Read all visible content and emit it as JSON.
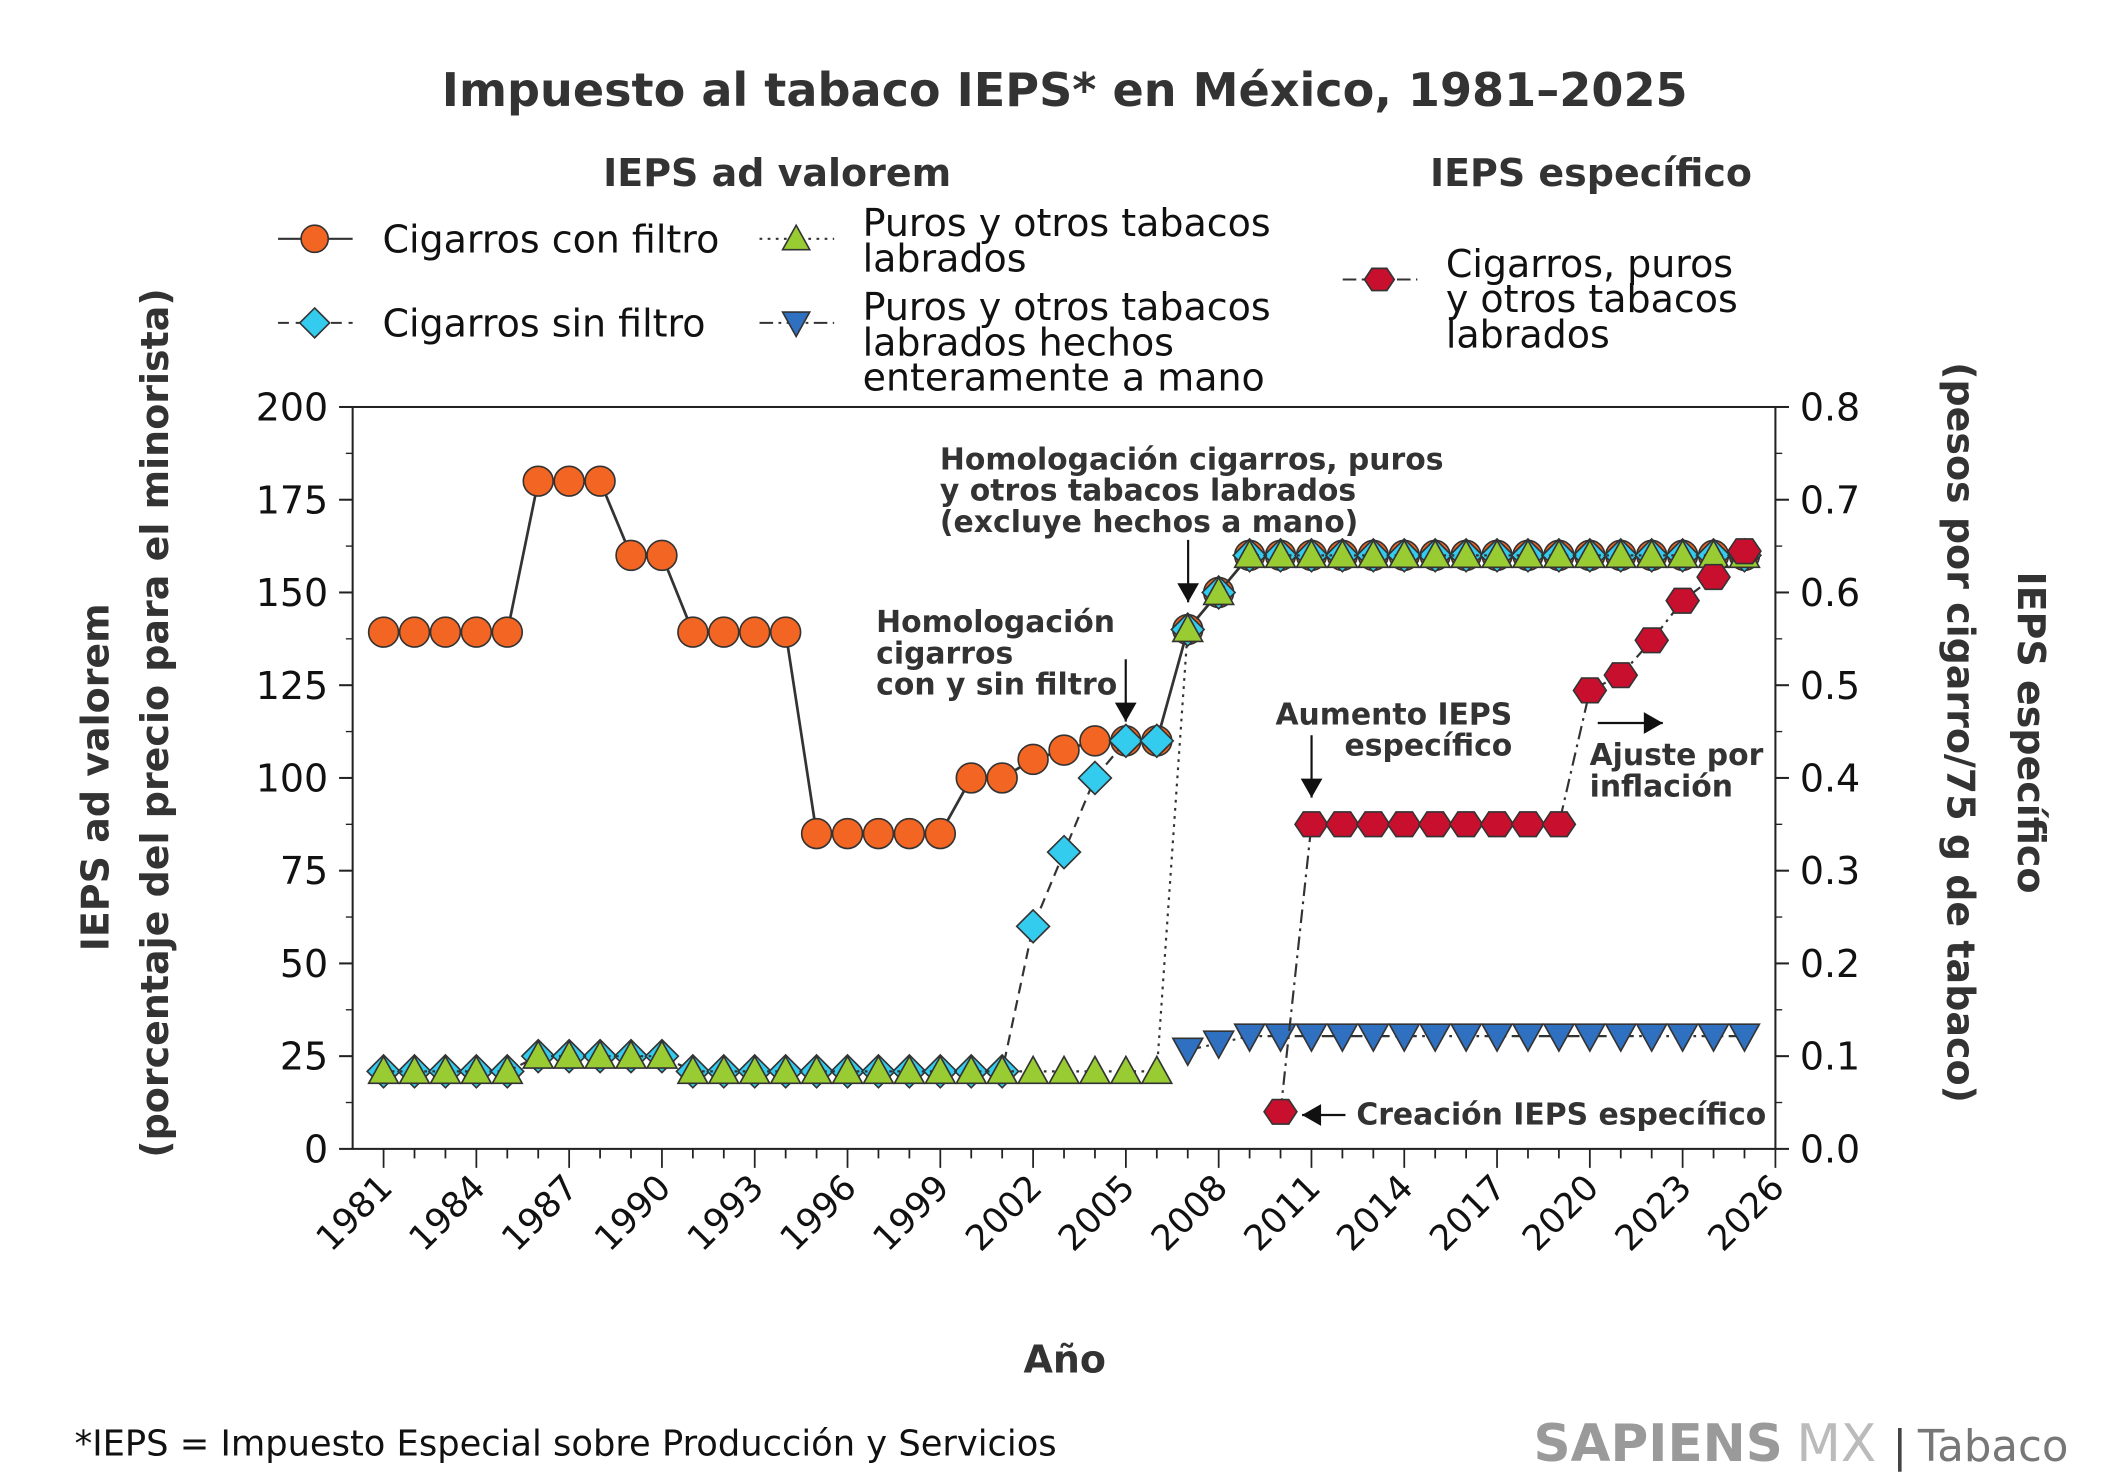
{
  "chart_data": {
    "type": "line",
    "title": "Impuesto al tabaco IEPS* en México, 1981–2025",
    "xlabel": "Año",
    "ylabel_left": [
      "IEPS ad valorem",
      "(porcentaje del precio para el minorista)"
    ],
    "ylabel_right": [
      "IEPS específico",
      "(pesos por cigarro/75 g de tabaco)"
    ],
    "xlim": [
      1980,
      2026
    ],
    "ylim_left": [
      0,
      200
    ],
    "ylim_right": [
      0,
      0.8
    ],
    "x_ticks": [
      "1981",
      "1984",
      "1987",
      "1990",
      "1993",
      "1996",
      "1999",
      "2002",
      "2005",
      "2008",
      "2011",
      "2014",
      "2017",
      "2020",
      "2023",
      "2026"
    ],
    "y_ticks_left": [
      "0",
      "25",
      "50",
      "75",
      "100",
      "125",
      "150",
      "175",
      "200"
    ],
    "y_ticks_right": [
      "0.0",
      "0.1",
      "0.2",
      "0.3",
      "0.4",
      "0.5",
      "0.6",
      "0.7",
      "0.8"
    ],
    "grid": false,
    "legend_groups": {
      "ad_valorem": "IEPS ad valorem",
      "especifico": "IEPS específico"
    },
    "series": [
      {
        "name": "Cigarros con filtro",
        "axis": "left",
        "marker": "circle",
        "line": "solid",
        "color": "#F26522",
        "x": [
          1981,
          1982,
          1983,
          1984,
          1985,
          1986,
          1987,
          1988,
          1989,
          1990,
          1991,
          1992,
          1993,
          1994,
          1995,
          1996,
          1997,
          1998,
          1999,
          2000,
          2001,
          2002,
          2003,
          2004,
          2005,
          2006,
          2007,
          2008,
          2009,
          2010,
          2011,
          2012,
          2013,
          2014,
          2015,
          2016,
          2017,
          2018,
          2019,
          2020,
          2021,
          2022,
          2023,
          2024,
          2025
        ],
        "y": [
          139.3,
          139.3,
          139.3,
          139.3,
          139.3,
          180,
          180,
          180,
          160,
          160,
          139.3,
          139.3,
          139.3,
          139.3,
          85,
          85,
          85,
          85,
          85,
          100,
          100,
          105,
          107.5,
          110,
          110,
          110,
          140,
          150,
          160,
          160,
          160,
          160,
          160,
          160,
          160,
          160,
          160,
          160,
          160,
          160,
          160,
          160,
          160,
          160,
          160
        ]
      },
      {
        "name": "Cigarros sin filtro",
        "axis": "left",
        "marker": "diamond",
        "line": "dashed",
        "color": "#33CCEE",
        "x": [
          1981,
          1982,
          1983,
          1984,
          1985,
          1986,
          1987,
          1988,
          1989,
          1990,
          1991,
          1992,
          1993,
          1994,
          1995,
          1996,
          1997,
          1998,
          1999,
          2000,
          2001,
          2002,
          2003,
          2004,
          2005,
          2006,
          2007,
          2008,
          2009,
          2010,
          2011,
          2012,
          2013,
          2014,
          2015,
          2016,
          2017,
          2018,
          2019,
          2020,
          2021,
          2022,
          2023,
          2024,
          2025
        ],
        "y": [
          20.9,
          20.9,
          20.9,
          20.9,
          20.9,
          25,
          25,
          25,
          25,
          25,
          20.9,
          20.9,
          20.9,
          20.9,
          20.9,
          20.9,
          20.9,
          20.9,
          20.9,
          20.9,
          20.9,
          60,
          80,
          100,
          110,
          110,
          140,
          150,
          160,
          160,
          160,
          160,
          160,
          160,
          160,
          160,
          160,
          160,
          160,
          160,
          160,
          160,
          160,
          160,
          160
        ]
      },
      {
        "name": "Puros y otros tabacos labrados",
        "axis": "left",
        "marker": "triangle-up",
        "line": "dotted",
        "color": "#99CC33",
        "x": [
          1981,
          1982,
          1983,
          1984,
          1985,
          1986,
          1987,
          1988,
          1989,
          1990,
          1991,
          1992,
          1993,
          1994,
          1995,
          1996,
          1997,
          1998,
          1999,
          2000,
          2001,
          2002,
          2003,
          2004,
          2005,
          2006,
          2007,
          2008,
          2009,
          2010,
          2011,
          2012,
          2013,
          2014,
          2015,
          2016,
          2017,
          2018,
          2019,
          2020,
          2021,
          2022,
          2023,
          2024,
          2025
        ],
        "y": [
          20.9,
          20.9,
          20.9,
          20.9,
          20.9,
          25,
          25,
          25,
          25,
          25,
          20.9,
          20.9,
          20.9,
          20.9,
          20.9,
          20.9,
          20.9,
          20.9,
          20.9,
          20.9,
          20.9,
          20.9,
          20.9,
          20.9,
          20.9,
          20.9,
          140,
          150,
          160,
          160,
          160,
          160,
          160,
          160,
          160,
          160,
          160,
          160,
          160,
          160,
          160,
          160,
          160,
          160,
          160
        ]
      },
      {
        "name": "Puros y otros tabacos labrados hechos enteramente a mano",
        "axis": "left",
        "marker": "triangle-down",
        "line": "dashdot",
        "color": "#3070C0",
        "x": [
          2007,
          2008,
          2009,
          2010,
          2011,
          2012,
          2013,
          2014,
          2015,
          2016,
          2017,
          2018,
          2019,
          2020,
          2021,
          2022,
          2023,
          2024,
          2025
        ],
        "y": [
          26.6,
          28.5,
          30.4,
          30.4,
          30.4,
          30.4,
          30.4,
          30.4,
          30.4,
          30.4,
          30.4,
          30.4,
          30.4,
          30.4,
          30.4,
          30.4,
          30.4,
          30.4,
          30.4
        ]
      },
      {
        "name": "Cigarros, puros y otros tabacos labrados",
        "axis": "right",
        "marker": "hexagon",
        "line": "dashdot",
        "color": "#C8102E",
        "x": [
          2010,
          2011,
          2012,
          2013,
          2014,
          2015,
          2016,
          2017,
          2018,
          2019,
          2020,
          2021,
          2022,
          2023,
          2024,
          2025
        ],
        "y": [
          0.04,
          0.35,
          0.35,
          0.35,
          0.35,
          0.35,
          0.35,
          0.35,
          0.35,
          0.35,
          0.4944,
          0.5108,
          0.5484,
          0.5911,
          0.6166,
          0.6445
        ]
      }
    ],
    "legend_labels": {
      "s0": [
        "Cigarros con filtro"
      ],
      "s1": [
        "Cigarros sin filtro"
      ],
      "s2": [
        "Puros y otros tabacos",
        "labrados"
      ],
      "s3": [
        "Puros y otros tabacos",
        "labrados hechos",
        "enteramente a mano"
      ],
      "s4": [
        "Cigarros, puros",
        "y otros tabacos",
        "labrados"
      ]
    },
    "annotations": [
      {
        "lines": [
          "Homologación cigarros, puros",
          "y otros tabacos labrados",
          "(excluye hechos a mano)"
        ]
      },
      {
        "lines": [
          "Homologación",
          "cigarros",
          "con y sin filtro"
        ]
      },
      {
        "lines": [
          "Aumento IEPS",
          "específico"
        ]
      },
      {
        "lines": [
          "Ajuste por",
          "inflación"
        ]
      },
      {
        "lines": [
          "Creación IEPS específico"
        ]
      }
    ]
  },
  "footnote": "*IEPS = Impuesto Especial sobre Producción y Servicios",
  "brand": {
    "bold": "SAPIENS",
    "light": "MX",
    "sep": "|",
    "section": "Tabaco"
  }
}
